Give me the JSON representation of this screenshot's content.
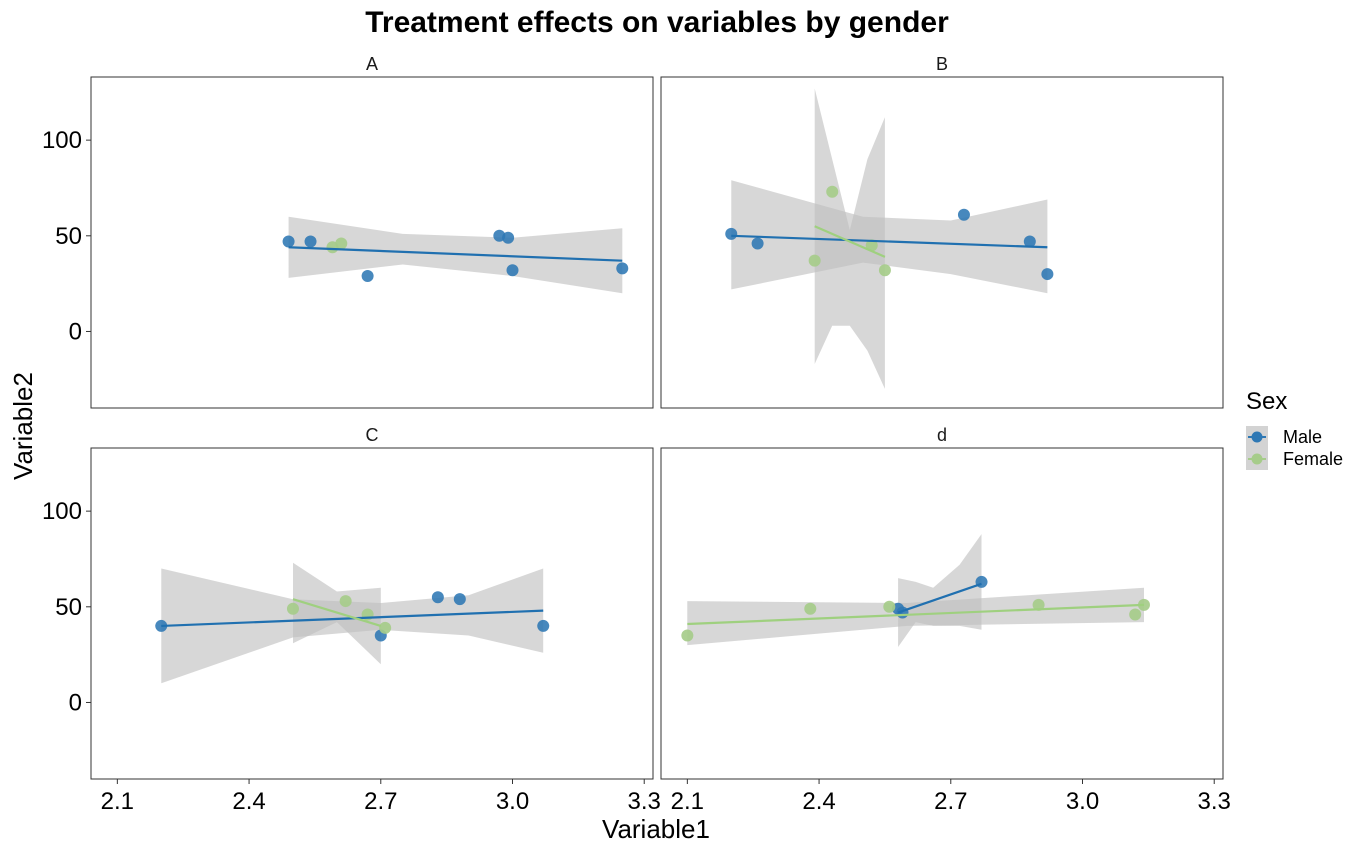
{
  "chart_data": {
    "type": "scatter",
    "title": "Treatment effects on variables by gender",
    "xlabel": "Variable1",
    "ylabel": "Variable2",
    "xlim": [
      2.04,
      3.32
    ],
    "ylim": [
      -40,
      133
    ],
    "x_ticks": [
      2.1,
      2.4,
      2.7,
      3.0,
      3.3
    ],
    "x_tick_labels": [
      "2.1",
      "2.4",
      "2.7",
      "3.0",
      "3.3"
    ],
    "y_ticks": [
      0,
      50,
      100
    ],
    "y_tick_labels": [
      "0",
      "50",
      "100"
    ],
    "grid": false,
    "legend": {
      "title": "Sex",
      "position": "right",
      "entries": [
        {
          "name": "Male",
          "color": "#2e78b4"
        },
        {
          "name": "Female",
          "color": "#a6cc8a"
        }
      ]
    },
    "colors": {
      "Male": "#2e78b4",
      "Female": "#a6cc8a",
      "band": "#bebebe"
    },
    "panels": [
      {
        "label": "A",
        "points": {
          "Male": [
            [
              2.49,
              47
            ],
            [
              2.54,
              47
            ],
            [
              2.67,
              29
            ],
            [
              2.97,
              50
            ],
            [
              2.99,
              49
            ],
            [
              3.0,
              32
            ],
            [
              3.25,
              33
            ]
          ],
          "Female": [
            [
              2.59,
              44
            ],
            [
              2.61,
              46
            ]
          ]
        },
        "fits": {
          "Male": {
            "x": [
              2.49,
              3.25
            ],
            "y": [
              44,
              37
            ],
            "band_x": [
              2.49,
              2.75,
              3.0,
              3.25
            ],
            "band_upper": [
              60,
              51,
              49,
              54
            ],
            "band_lower": [
              28,
              35,
              29,
              20
            ]
          }
        }
      },
      {
        "label": "B",
        "points": {
          "Male": [
            [
              2.2,
              51
            ],
            [
              2.26,
              46
            ],
            [
              2.73,
              61
            ],
            [
              2.88,
              47
            ],
            [
              2.92,
              30
            ]
          ],
          "Female": [
            [
              2.39,
              37
            ],
            [
              2.43,
              73
            ],
            [
              2.52,
              45
            ],
            [
              2.55,
              32
            ]
          ]
        },
        "fits": {
          "Male": {
            "x": [
              2.2,
              2.92
            ],
            "y": [
              50,
              44
            ],
            "band_x": [
              2.2,
              2.5,
              2.7,
              2.92
            ],
            "band_upper": [
              79,
              60,
              58,
              69
            ],
            "band_lower": [
              22,
              36,
              30,
              20
            ]
          },
          "Female": {
            "x": [
              2.39,
              2.55
            ],
            "y": [
              55,
              39
            ],
            "band_x": [
              2.39,
              2.43,
              2.47,
              2.51,
              2.55
            ],
            "band_upper": [
              127,
              90,
              53,
              90,
              112
            ],
            "band_lower": [
              -17,
              3,
              3,
              -10,
              -30
            ]
          }
        }
      },
      {
        "label": "C",
        "points": {
          "Male": [
            [
              2.2,
              40
            ],
            [
              2.7,
              35
            ],
            [
              2.83,
              55
            ],
            [
              2.88,
              54
            ],
            [
              3.07,
              40
            ]
          ],
          "Female": [
            [
              2.5,
              49
            ],
            [
              2.62,
              53
            ],
            [
              2.67,
              46
            ],
            [
              2.71,
              39
            ]
          ]
        },
        "fits": {
          "Male": {
            "x": [
              2.2,
              3.07
            ],
            "y": [
              40,
              48
            ],
            "band_x": [
              2.2,
              2.5,
              2.7,
              2.9,
              3.07
            ],
            "band_upper": [
              70,
              54,
              52,
              56,
              70
            ],
            "band_lower": [
              10,
              34,
              38,
              35,
              26
            ]
          },
          "Female": {
            "x": [
              2.5,
              2.7
            ],
            "y": [
              54,
              40
            ],
            "band_x": [
              2.5,
              2.6,
              2.7
            ],
            "band_upper": [
              73,
              58,
              60
            ],
            "band_lower": [
              31,
              42,
              20
            ]
          }
        }
      },
      {
        "label": "d",
        "points": {
          "Male": [
            [
              2.58,
              49
            ],
            [
              2.59,
              47
            ],
            [
              2.77,
              63
            ]
          ],
          "Female": [
            [
              2.1,
              35
            ],
            [
              2.38,
              49
            ],
            [
              2.56,
              50
            ],
            [
              2.9,
              51
            ],
            [
              3.12,
              46
            ],
            [
              3.14,
              51
            ]
          ]
        },
        "fits": {
          "Male": {
            "x": [
              2.58,
              2.77
            ],
            "y": [
              47,
              62
            ],
            "band_x": [
              2.58,
              2.62,
              2.66,
              2.72,
              2.77
            ],
            "band_upper": [
              65,
              63,
              60,
              72,
              88
            ],
            "band_lower": [
              29,
              42,
              40,
              40,
              38
            ]
          },
          "Female": {
            "x": [
              2.1,
              3.14
            ],
            "y": [
              41,
              51
            ],
            "band_x": [
              2.1,
              2.6,
              3.14
            ],
            "band_upper": [
              53,
              52,
              60
            ],
            "band_lower": [
              30,
              40,
              42
            ]
          }
        }
      }
    ]
  }
}
